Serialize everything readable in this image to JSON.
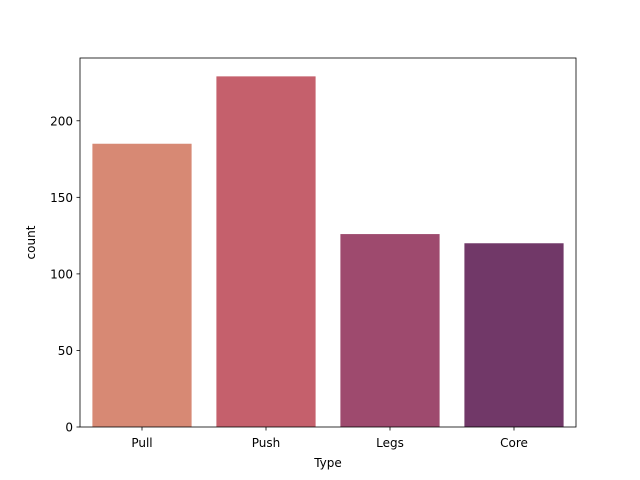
{
  "chart_data": {
    "type": "bar",
    "xlabel": "Type",
    "ylabel": "count",
    "categories": [
      "Pull",
      "Push",
      "Legs",
      "Core"
    ],
    "values": [
      185,
      229,
      126,
      120
    ],
    "colors": [
      "#d78974",
      "#c5606c",
      "#9e4a6e",
      "#713868"
    ],
    "ylim": [
      0,
      241
    ],
    "yticks": [
      0,
      50,
      100,
      150,
      200
    ],
    "grid": false,
    "legend": "none"
  }
}
